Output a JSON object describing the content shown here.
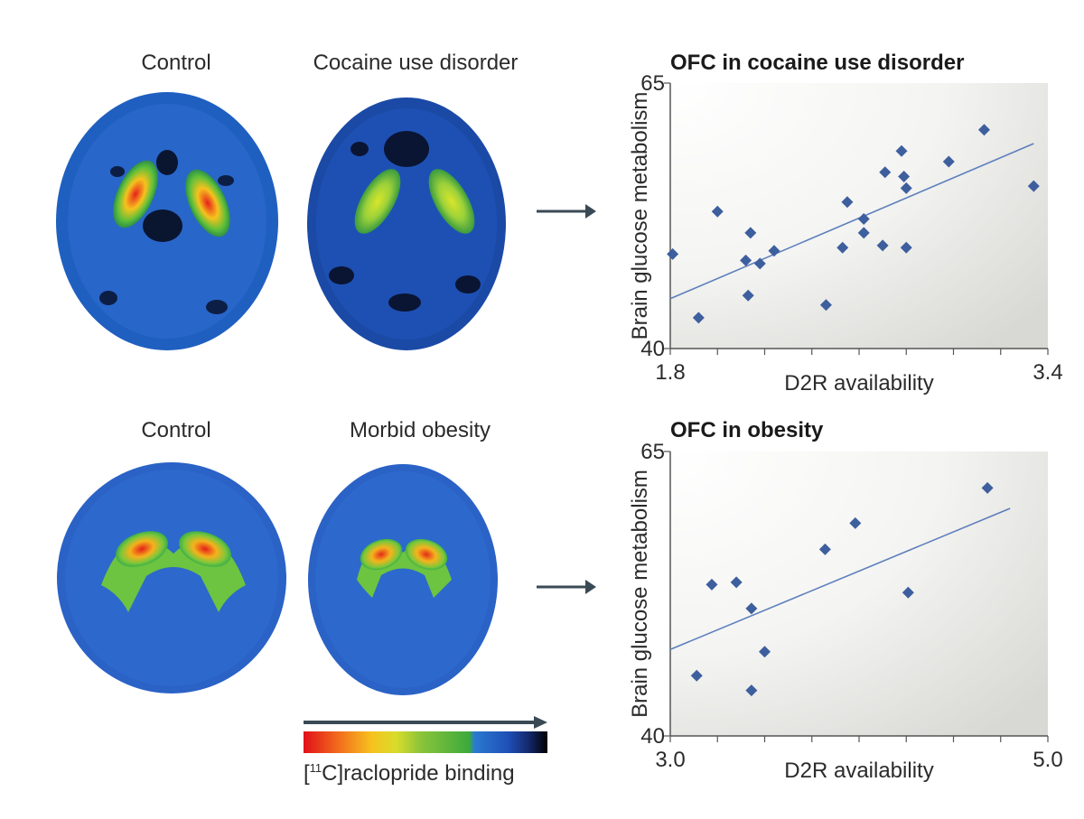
{
  "panels": {
    "top": {
      "label_left": "Control",
      "label_right": "Cocaine use disorder"
    },
    "bottom": {
      "label_left": "Control",
      "label_right": "Morbid obesity"
    }
  },
  "colorbar": {
    "isotope_mass": "11",
    "label_prefix": "[",
    "label_element": "C]raclopride binding",
    "colors": [
      "#e0101a",
      "#f7c31e",
      "#3caa3c",
      "#1f4fb5",
      "#000000"
    ]
  },
  "chart_data": [
    {
      "type": "scatter",
      "title": "OFC in cocaine use disorder",
      "xlabel": "D2R availability",
      "ylabel": "Brain glucose metabolism",
      "xlim": [
        1.8,
        3.4
      ],
      "ylim": [
        40,
        65
      ],
      "x_tick_labels": [
        "1.8",
        "3.4"
      ],
      "y_tick_labels": [
        "40",
        "65"
      ],
      "marker_color": "#3e5f9e",
      "points": [
        {
          "x": 1.81,
          "y": 48.9
        },
        {
          "x": 1.92,
          "y": 42.9
        },
        {
          "x": 2.0,
          "y": 52.9
        },
        {
          "x": 2.12,
          "y": 48.3
        },
        {
          "x": 2.13,
          "y": 45.0
        },
        {
          "x": 2.14,
          "y": 50.9
        },
        {
          "x": 2.18,
          "y": 48.0
        },
        {
          "x": 2.24,
          "y": 49.2
        },
        {
          "x": 2.46,
          "y": 44.1
        },
        {
          "x": 2.53,
          "y": 49.5
        },
        {
          "x": 2.55,
          "y": 53.8
        },
        {
          "x": 2.62,
          "y": 50.9
        },
        {
          "x": 2.62,
          "y": 52.2
        },
        {
          "x": 2.7,
          "y": 49.7
        },
        {
          "x": 2.71,
          "y": 56.6
        },
        {
          "x": 2.78,
          "y": 58.6
        },
        {
          "x": 2.79,
          "y": 56.2
        },
        {
          "x": 2.8,
          "y": 55.1
        },
        {
          "x": 2.8,
          "y": 49.5
        },
        {
          "x": 2.98,
          "y": 57.6
        },
        {
          "x": 3.13,
          "y": 60.6
        },
        {
          "x": 3.34,
          "y": 55.3
        }
      ],
      "fit": [
        {
          "x": 1.8,
          "y": 44.7
        },
        {
          "x": 3.34,
          "y": 59.3
        }
      ]
    },
    {
      "type": "scatter",
      "title": "OFC in obesity",
      "xlabel": "D2R availability",
      "ylabel": "Brain glucose metabolism",
      "xlim": [
        3.0,
        5.0
      ],
      "ylim": [
        40,
        65
      ],
      "x_tick_labels": [
        "3.0",
        "5.0"
      ],
      "y_tick_labels": [
        "40",
        "65"
      ],
      "marker_color": "#3e5f9e",
      "points": [
        {
          "x": 3.14,
          "y": 45.3
        },
        {
          "x": 3.22,
          "y": 53.3
        },
        {
          "x": 3.35,
          "y": 53.5
        },
        {
          "x": 3.43,
          "y": 51.2
        },
        {
          "x": 3.5,
          "y": 47.4
        },
        {
          "x": 3.43,
          "y": 44.0
        },
        {
          "x": 3.82,
          "y": 56.4
        },
        {
          "x": 3.98,
          "y": 58.7
        },
        {
          "x": 4.26,
          "y": 52.6
        },
        {
          "x": 4.68,
          "y": 61.8
        }
      ],
      "fit": [
        {
          "x": 3.0,
          "y": 47.6
        },
        {
          "x": 4.8,
          "y": 60.0
        }
      ]
    }
  ]
}
